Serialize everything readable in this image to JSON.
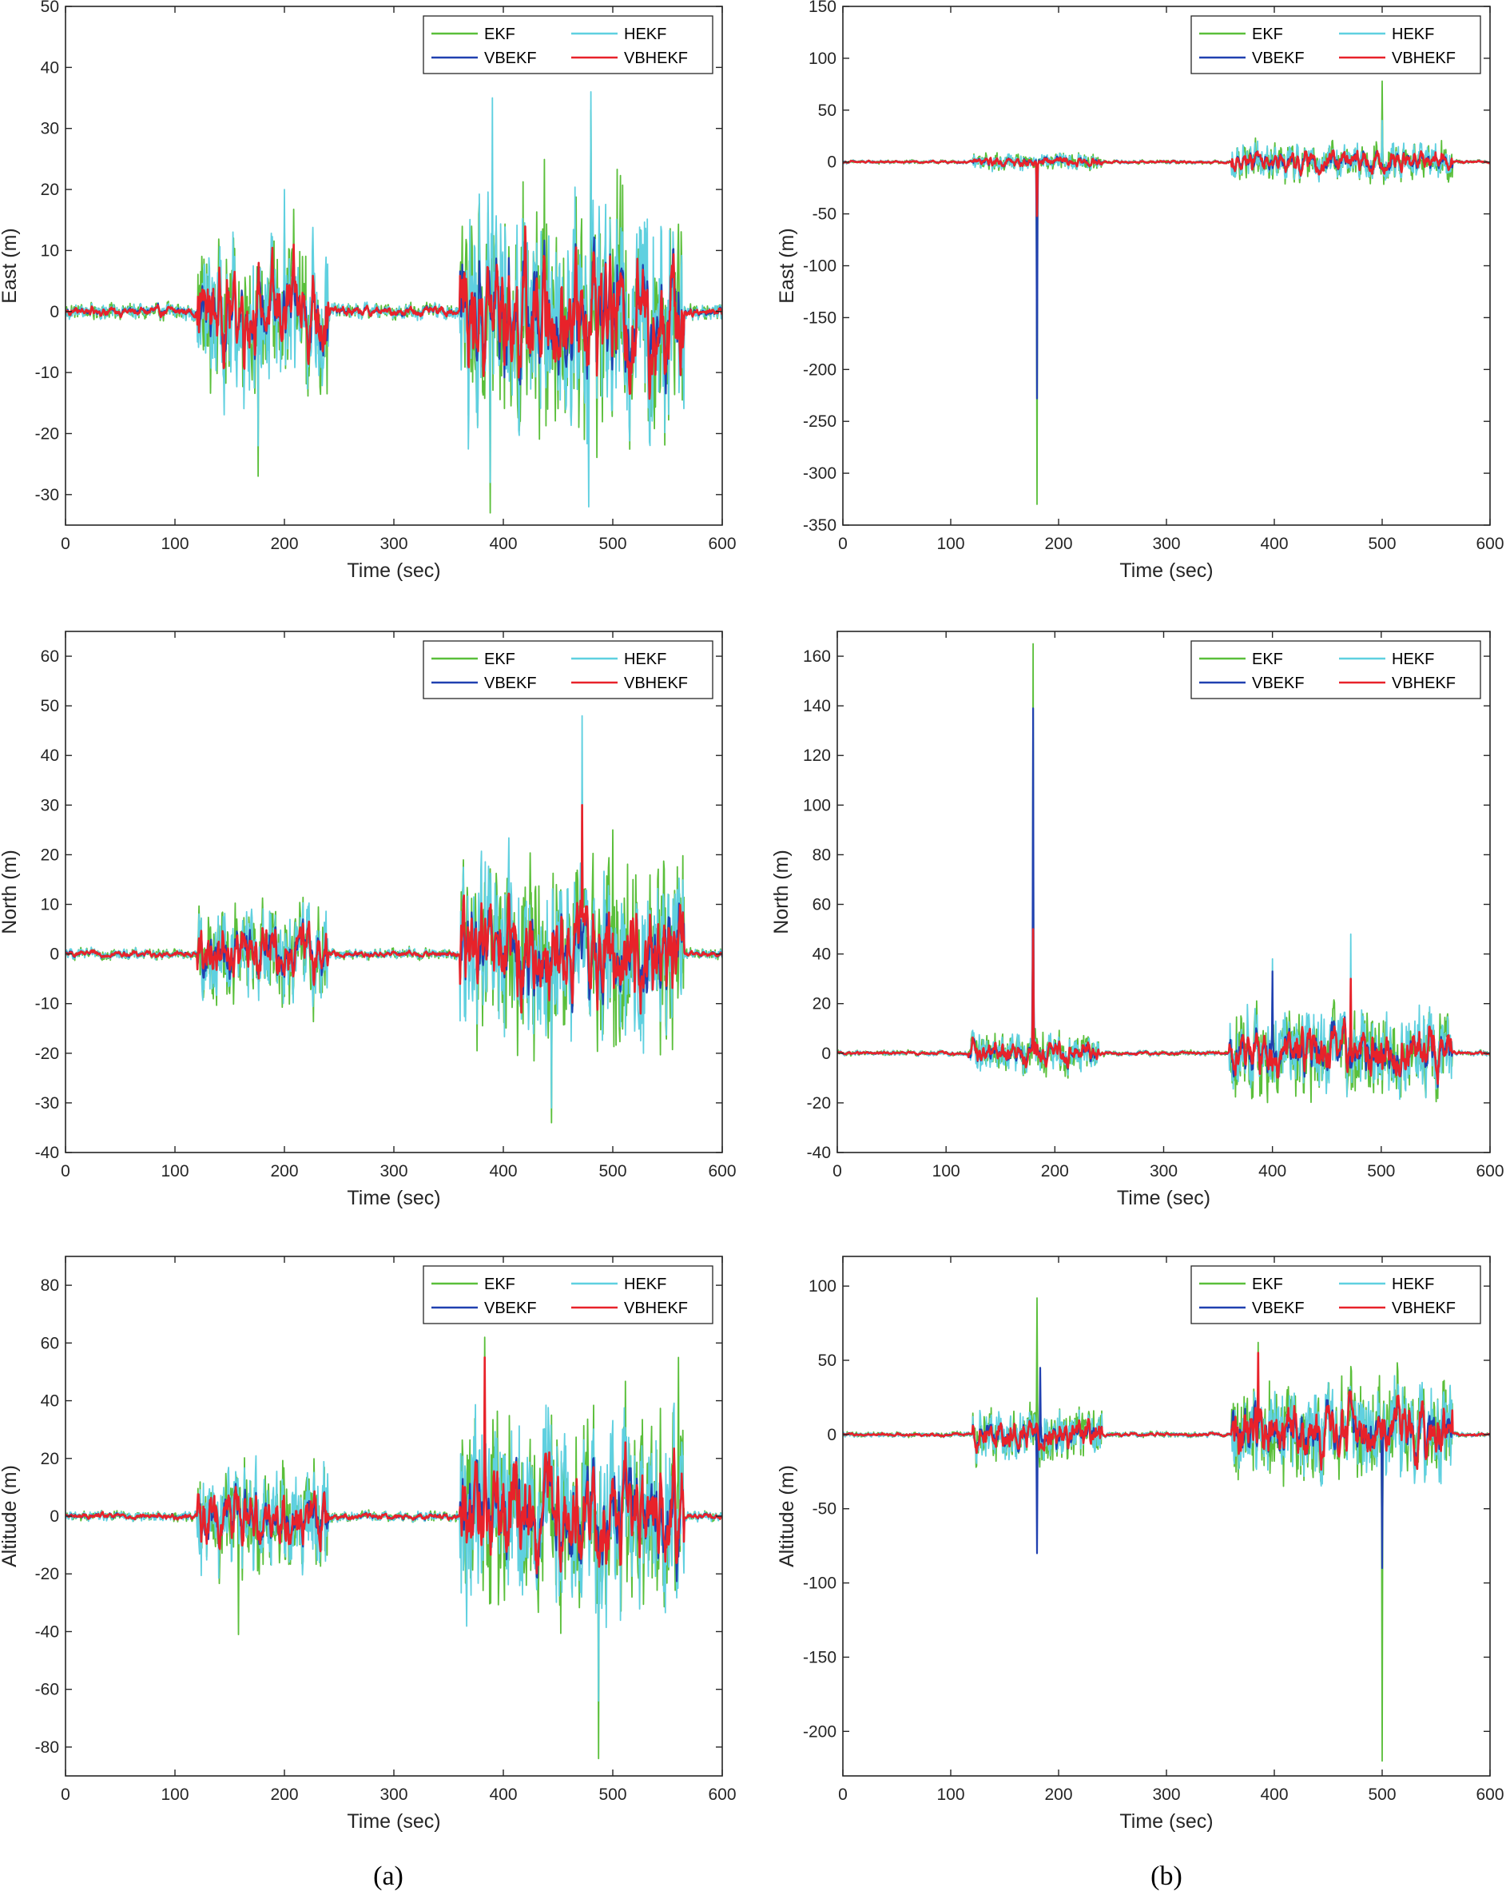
{
  "figure": {
    "captions": [
      "(a)",
      "(b)"
    ]
  },
  "colors": {
    "EKF": "#5abf3a",
    "HEKF": "#5fd0e0",
    "VBEKF": "#2040b0",
    "VBHEKF": "#e8222a",
    "axis": "#262626"
  },
  "legend": [
    "EKF",
    "HEKF",
    "VBEKF",
    "VBHEKF"
  ],
  "chart_data": [
    {
      "id": "a-east",
      "type": "line",
      "xlabel": "Time (sec)",
      "ylabel": "East (m)",
      "xlim": [
        0,
        600
      ],
      "ylim": [
        -35,
        50
      ],
      "xticks": [
        0,
        100,
        200,
        300,
        400,
        500,
        600
      ],
      "yticks": [
        -30,
        -20,
        -10,
        0,
        10,
        20,
        30,
        40,
        50
      ],
      "series": [
        "EKF",
        "HEKF",
        "VBEKF",
        "VBHEKF"
      ],
      "segments": [
        {
          "range": [
            0,
            120
          ],
          "amp": 1.5
        },
        {
          "range": [
            120,
            240
          ],
          "amp": 14
        },
        {
          "range": [
            240,
            360
          ],
          "amp": 1.5
        },
        {
          "range": [
            360,
            565
          ],
          "amp": 22
        },
        {
          "range": [
            565,
            600
          ],
          "amp": 1.5
        }
      ],
      "peaks": [
        {
          "t": 176,
          "EKF": -27,
          "HEKF": -22
        },
        {
          "t": 200,
          "HEKF": 20,
          "EKF": 15
        },
        {
          "t": 388,
          "EKF": -33,
          "HEKF": -28
        },
        {
          "t": 390,
          "HEKF": 35
        },
        {
          "t": 478,
          "HEKF": -32
        },
        {
          "t": 480,
          "HEKF": 36,
          "EKF": 33
        }
      ]
    },
    {
      "id": "b-east",
      "type": "line",
      "xlabel": "Time (sec)",
      "ylabel": "East (m)",
      "xlim": [
        0,
        600
      ],
      "ylim": [
        -350,
        150
      ],
      "xticks": [
        0,
        100,
        200,
        300,
        400,
        500,
        600
      ],
      "yticks": [
        -350,
        -300,
        -250,
        -200,
        -150,
        -100,
        -50,
        0,
        50,
        100,
        150
      ],
      "series": [
        "EKF",
        "HEKF",
        "VBEKF",
        "VBHEKF"
      ],
      "segments": [
        {
          "range": [
            0,
            120
          ],
          "amp": 2
        },
        {
          "range": [
            120,
            240
          ],
          "amp": 9
        },
        {
          "range": [
            240,
            360
          ],
          "amp": 2
        },
        {
          "range": [
            360,
            565
          ],
          "amp": 20
        },
        {
          "range": [
            565,
            600
          ],
          "amp": 2
        }
      ],
      "peaks": [
        {
          "t": 180,
          "EKF": -330,
          "HEKF": -60,
          "VBEKF": -228,
          "VBHEKF": -52
        },
        {
          "t": 500,
          "EKF": 78,
          "HEKF": 40
        }
      ]
    },
    {
      "id": "a-north",
      "type": "line",
      "xlabel": "Time (sec)",
      "ylabel": "North (m)",
      "xlim": [
        0,
        600
      ],
      "ylim": [
        -40,
        65
      ],
      "xticks": [
        0,
        100,
        200,
        300,
        400,
        500,
        600
      ],
      "yticks": [
        -40,
        -30,
        -20,
        -10,
        0,
        10,
        20,
        30,
        40,
        50,
        60
      ],
      "series": [
        "EKF",
        "HEKF",
        "VBEKF",
        "VBHEKF"
      ],
      "segments": [
        {
          "range": [
            0,
            120
          ],
          "amp": 1.2
        },
        {
          "range": [
            120,
            240
          ],
          "amp": 11
        },
        {
          "range": [
            240,
            360
          ],
          "amp": 1.2
        },
        {
          "range": [
            360,
            565
          ],
          "amp": 20
        },
        {
          "range": [
            565,
            600
          ],
          "amp": 1.2
        }
      ],
      "peaks": [
        {
          "t": 472,
          "HEKF": 48,
          "EKF": 34,
          "VBHEKF": 30
        },
        {
          "t": 444,
          "EKF": -34,
          "HEKF": -31
        },
        {
          "t": 500,
          "EKF": 25
        }
      ]
    },
    {
      "id": "b-north",
      "type": "line",
      "xlabel": "Time (sec)",
      "ylabel": "North (m)",
      "xlim": [
        0,
        600
      ],
      "ylim": [
        -40,
        170
      ],
      "xticks": [
        0,
        100,
        200,
        300,
        400,
        500,
        600
      ],
      "yticks": [
        -40,
        -20,
        0,
        20,
        40,
        60,
        80,
        100,
        120,
        140,
        160
      ],
      "series": [
        "EKF",
        "HEKF",
        "VBEKF",
        "VBHEKF"
      ],
      "segments": [
        {
          "range": [
            0,
            120
          ],
          "amp": 1.2
        },
        {
          "range": [
            120,
            240
          ],
          "amp": 9
        },
        {
          "range": [
            240,
            360
          ],
          "amp": 1.2
        },
        {
          "range": [
            360,
            565
          ],
          "amp": 20
        },
        {
          "range": [
            565,
            600
          ],
          "amp": 1.2
        }
      ],
      "peaks": [
        {
          "t": 180,
          "EKF": 165,
          "VBEKF": 139,
          "HEKF": 85,
          "VBHEKF": 50
        },
        {
          "t": 472,
          "HEKF": 48,
          "VBHEKF": 30
        },
        {
          "t": 400,
          "VBEKF": 33,
          "HEKF": 38
        }
      ]
    },
    {
      "id": "a-alt",
      "type": "line",
      "xlabel": "Time (sec)",
      "ylabel": "Altitude (m)",
      "xlim": [
        0,
        600
      ],
      "ylim": [
        -90,
        90
      ],
      "xticks": [
        0,
        100,
        200,
        300,
        400,
        500,
        600
      ],
      "yticks": [
        -80,
        -60,
        -40,
        -20,
        0,
        20,
        40,
        60,
        80
      ],
      "series": [
        "EKF",
        "HEKF",
        "VBEKF",
        "VBHEKF"
      ],
      "segments": [
        {
          "range": [
            0,
            120
          ],
          "amp": 2
        },
        {
          "range": [
            120,
            240
          ],
          "amp": 20
        },
        {
          "range": [
            240,
            360
          ],
          "amp": 2
        },
        {
          "range": [
            360,
            565
          ],
          "amp": 38
        },
        {
          "range": [
            565,
            600
          ],
          "amp": 2
        }
      ],
      "peaks": [
        {
          "t": 487,
          "EKF": -84,
          "HEKF": -64
        },
        {
          "t": 383,
          "EKF": 62,
          "VBHEKF": 55
        },
        {
          "t": 560,
          "EKF": 55
        },
        {
          "t": 158,
          "EKF": -41
        }
      ]
    },
    {
      "id": "b-alt",
      "type": "line",
      "xlabel": "Time (sec)",
      "ylabel": "Altitude (m)",
      "xlim": [
        0,
        600
      ],
      "ylim": [
        -230,
        120
      ],
      "xticks": [
        0,
        100,
        200,
        300,
        400,
        500,
        600
      ],
      "yticks": [
        -200,
        -150,
        -100,
        -50,
        0,
        50,
        100
      ],
      "series": [
        "EKF",
        "HEKF",
        "VBEKF",
        "VBHEKF"
      ],
      "segments": [
        {
          "range": [
            0,
            120
          ],
          "amp": 2
        },
        {
          "range": [
            120,
            240
          ],
          "amp": 20
        },
        {
          "range": [
            240,
            360
          ],
          "amp": 2
        },
        {
          "range": [
            360,
            565
          ],
          "amp": 38
        },
        {
          "range": [
            565,
            600
          ],
          "amp": 2
        }
      ],
      "peaks": [
        {
          "t": 500,
          "EKF": -220,
          "VBEKF": -90,
          "HEKF": -60
        },
        {
          "t": 180,
          "EKF": 92,
          "VBEKF": -80,
          "HEKF": -42
        },
        {
          "t": 183,
          "VBEKF": 45
        },
        {
          "t": 385,
          "EKF": 62,
          "VBHEKF": 55
        }
      ]
    }
  ]
}
